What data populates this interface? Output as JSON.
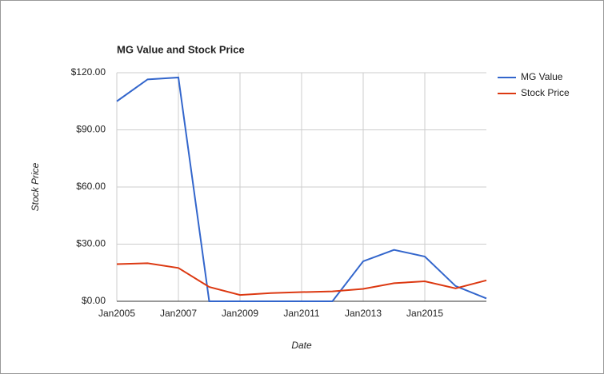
{
  "chart_data": {
    "type": "line",
    "title": "MG Value and Stock Price",
    "x_label": "Date",
    "y_label": "Stock Price",
    "x": [
      "2005-01",
      "2006-01",
      "2007-01",
      "2008-01",
      "2009-01",
      "2010-01",
      "2011-01",
      "2012-01",
      "2013-01",
      "2014-01",
      "2015-01",
      "2016-01",
      "2017-01"
    ],
    "series": [
      {
        "name": "MG Value",
        "color": "#3366cc",
        "values": [
          105,
          116.5,
          117.5,
          0,
          0,
          0,
          0,
          0,
          21,
          27,
          23.5,
          8,
          1.5
        ]
      },
      {
        "name": "Stock Price",
        "color": "#dc3912",
        "values": [
          19.5,
          20,
          17.5,
          7.5,
          3.3,
          4.3,
          4.8,
          5.2,
          6.5,
          9.5,
          10.5,
          6.8,
          11
        ]
      }
    ],
    "xlim": [
      "2005-01",
      "2017-01"
    ],
    "xticks": [
      {
        "value": "2005-01",
        "label": "Jan2005"
      },
      {
        "value": "2007-01",
        "label": "Jan2007"
      },
      {
        "value": "2009-01",
        "label": "Jan2009"
      },
      {
        "value": "2011-01",
        "label": "Jan2011"
      },
      {
        "value": "2013-01",
        "label": "Jan2013"
      },
      {
        "value": "2015-01",
        "label": "Jan2015"
      }
    ],
    "ylim": [
      0,
      120
    ],
    "yticks": [
      {
        "value": 0,
        "label": "$0.00"
      },
      {
        "value": 30,
        "label": "$30.00"
      },
      {
        "value": 60,
        "label": "$60.00"
      },
      {
        "value": 90,
        "label": "$90.00"
      },
      {
        "value": 120,
        "label": "$120.00"
      }
    ],
    "grid": true,
    "legend": "right"
  }
}
